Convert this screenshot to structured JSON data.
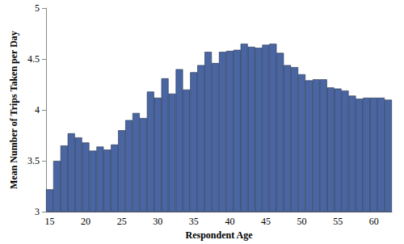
{
  "chart_data": {
    "type": "bar",
    "x_label": "Respondent Age",
    "y_label": "Mean Number of Trips Taken per Day",
    "categories": [
      "15",
      null,
      null,
      null,
      null,
      "20",
      null,
      null,
      null,
      null,
      "25",
      null,
      null,
      null,
      null,
      "30",
      null,
      null,
      null,
      null,
      "35",
      null,
      null,
      null,
      null,
      "40",
      null,
      null,
      null,
      null,
      "45",
      null,
      null,
      null,
      null,
      "50",
      null,
      null,
      null,
      null,
      "55",
      null,
      null,
      null,
      null,
      "60",
      null,
      null
    ],
    "values": [
      3.22,
      3.5,
      3.65,
      3.77,
      3.73,
      3.68,
      3.6,
      3.64,
      3.61,
      3.66,
      3.8,
      3.9,
      3.97,
      3.92,
      4.18,
      4.12,
      4.31,
      4.16,
      4.4,
      4.2,
      4.37,
      4.44,
      4.57,
      4.46,
      4.57,
      4.58,
      4.59,
      4.65,
      4.62,
      4.61,
      4.64,
      4.65,
      4.56,
      4.44,
      4.42,
      4.35,
      4.29,
      4.3,
      4.3,
      4.22,
      4.21,
      4.19,
      4.14,
      4.11,
      4.12,
      4.12,
      4.12,
      4.1
    ],
    "color": "#4a66a2",
    "ylim": [
      3,
      5
    ],
    "yticks": [
      3,
      3.5,
      4,
      4.5,
      5
    ],
    "grid": false
  }
}
